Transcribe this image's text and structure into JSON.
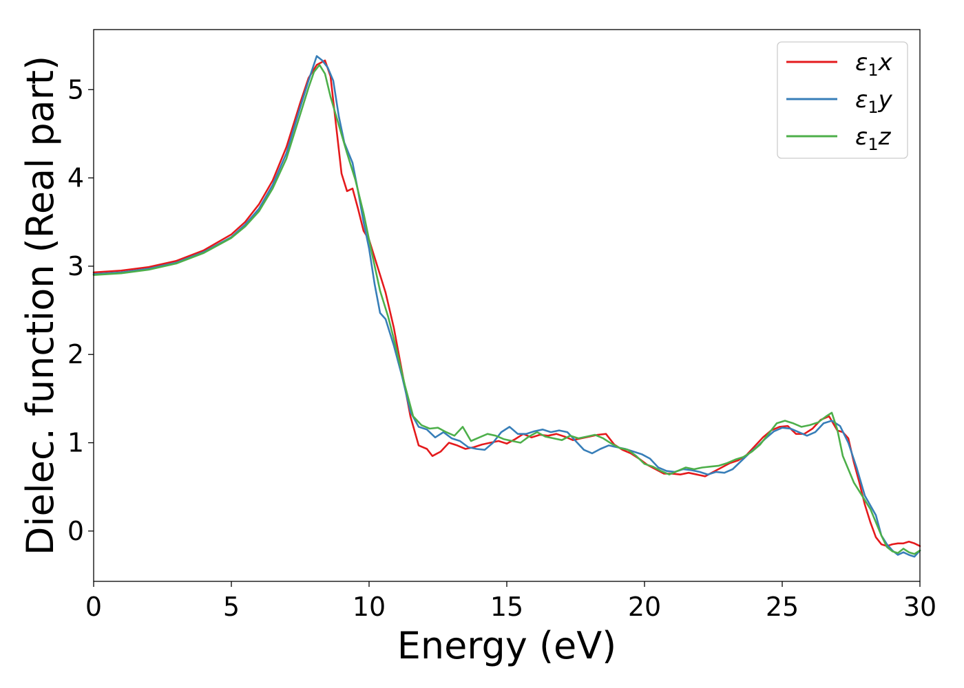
{
  "chart_data": {
    "type": "line",
    "title": "",
    "xlabel": "Energy (eV)",
    "ylabel": "Dielec. function (Real part)",
    "xlim": [
      0,
      30
    ],
    "ylim": [
      -0.57,
      5.68
    ],
    "xticks": [
      0,
      5,
      10,
      15,
      20,
      25,
      30
    ],
    "xtick_labels": [
      "0",
      "5",
      "10",
      "15",
      "20",
      "25",
      "30"
    ],
    "yticks": [
      0,
      1,
      2,
      3,
      4,
      5
    ],
    "ytick_labels": [
      "0",
      "1",
      "2",
      "3",
      "4",
      "5"
    ],
    "grid": false,
    "legend_position": "top-right",
    "series": [
      {
        "name": "ε₁x",
        "legend_main": "ε",
        "legend_sub": "1",
        "legend_var": "x",
        "color": "#e41a1c",
        "x": [
          0,
          1,
          2,
          3,
          4,
          5,
          5.5,
          6,
          6.5,
          7,
          7.5,
          7.8,
          8.1,
          8.4,
          8.6,
          8.8,
          9,
          9.2,
          9.4,
          9.6,
          9.8,
          10,
          10.3,
          10.6,
          10.9,
          11.2,
          11.5,
          11.8,
          12.1,
          12.3,
          12.6,
          12.9,
          13.2,
          13.5,
          13.8,
          14.1,
          14.4,
          14.7,
          15,
          15.3,
          15.6,
          15.9,
          16.2,
          16.5,
          16.8,
          17.1,
          17.4,
          17.7,
          18,
          18.3,
          18.6,
          18.9,
          19.2,
          19.5,
          19.8,
          20.1,
          20.4,
          20.7,
          21,
          21.3,
          21.6,
          21.9,
          22.2,
          22.5,
          22.8,
          23.1,
          23.4,
          23.7,
          24,
          24.3,
          24.6,
          24.9,
          25.2,
          25.5,
          25.8,
          26.1,
          26.4,
          26.7,
          27,
          27.2,
          27.4,
          27.6,
          27.8,
          28,
          28.2,
          28.4,
          28.6,
          28.8,
          29,
          29.2,
          29.4,
          29.6,
          29.8,
          30
        ],
        "y": [
          2.93,
          2.95,
          2.99,
          3.06,
          3.18,
          3.36,
          3.5,
          3.7,
          3.97,
          4.35,
          4.85,
          5.13,
          5.28,
          5.33,
          5.15,
          4.6,
          4.05,
          3.85,
          3.88,
          3.65,
          3.4,
          3.3,
          3.0,
          2.7,
          2.3,
          1.8,
          1.3,
          0.97,
          0.93,
          0.85,
          0.9,
          1.0,
          0.97,
          0.93,
          0.95,
          0.98,
          1.0,
          1.02,
          0.99,
          1.04,
          1.1,
          1.06,
          1.09,
          1.08,
          1.1,
          1.07,
          1.03,
          1.05,
          1.07,
          1.09,
          1.1,
          0.98,
          0.92,
          0.88,
          0.82,
          0.75,
          0.7,
          0.65,
          0.65,
          0.64,
          0.66,
          0.64,
          0.62,
          0.67,
          0.72,
          0.77,
          0.8,
          0.86,
          0.96,
          1.06,
          1.14,
          1.18,
          1.19,
          1.1,
          1.1,
          1.16,
          1.26,
          1.3,
          1.14,
          1.12,
          1.05,
          0.78,
          0.55,
          0.3,
          0.1,
          -0.07,
          -0.15,
          -0.17,
          -0.15,
          -0.14,
          -0.14,
          -0.12,
          -0.14,
          -0.17
        ]
      },
      {
        "name": "ε₁y",
        "legend_main": "ε",
        "legend_sub": "1",
        "legend_var": "y",
        "color": "#377eb8",
        "x": [
          0,
          1,
          2,
          3,
          4,
          5,
          5.5,
          6,
          6.5,
          7,
          7.5,
          7.8,
          8.1,
          8.3,
          8.5,
          8.7,
          8.9,
          9.1,
          9.4,
          9.6,
          9.8,
          10,
          10.2,
          10.4,
          10.6,
          10.9,
          11.2,
          11.5,
          11.8,
          12.1,
          12.4,
          12.7,
          13,
          13.3,
          13.6,
          13.9,
          14.2,
          14.5,
          14.8,
          15.1,
          15.4,
          15.7,
          16,
          16.3,
          16.6,
          16.9,
          17.2,
          17.5,
          17.8,
          18.1,
          18.4,
          18.7,
          19,
          19.3,
          19.6,
          19.9,
          20.2,
          20.5,
          20.8,
          21.1,
          21.4,
          21.7,
          22,
          22.3,
          22.6,
          22.9,
          23.2,
          23.5,
          23.8,
          24.1,
          24.4,
          24.7,
          25,
          25.3,
          25.6,
          25.9,
          26.2,
          26.5,
          26.8,
          27.1,
          27.4,
          27.7,
          28,
          28.2,
          28.4,
          28.6,
          28.8,
          29,
          29.2,
          29.4,
          29.6,
          29.8,
          30
        ],
        "y": [
          2.91,
          2.93,
          2.97,
          3.04,
          3.16,
          3.33,
          3.47,
          3.65,
          3.92,
          4.28,
          4.8,
          5.1,
          5.38,
          5.33,
          5.25,
          5.1,
          4.7,
          4.4,
          4.17,
          3.85,
          3.5,
          3.2,
          2.8,
          2.47,
          2.4,
          2.1,
          1.75,
          1.35,
          1.18,
          1.15,
          1.06,
          1.12,
          1.05,
          1.02,
          0.95,
          0.93,
          0.92,
          1.0,
          1.12,
          1.18,
          1.1,
          1.1,
          1.13,
          1.15,
          1.12,
          1.14,
          1.12,
          1.02,
          0.92,
          0.88,
          0.93,
          0.97,
          0.95,
          0.93,
          0.9,
          0.87,
          0.82,
          0.72,
          0.68,
          0.67,
          0.7,
          0.69,
          0.67,
          0.64,
          0.67,
          0.66,
          0.7,
          0.79,
          0.88,
          0.96,
          1.05,
          1.13,
          1.17,
          1.16,
          1.12,
          1.08,
          1.12,
          1.22,
          1.25,
          1.19,
          1.0,
          0.72,
          0.4,
          0.29,
          0.18,
          -0.05,
          -0.15,
          -0.22,
          -0.27,
          -0.24,
          -0.27,
          -0.29,
          -0.22
        ]
      },
      {
        "name": "ε₁z",
        "legend_main": "ε",
        "legend_sub": "1",
        "legend_var": "z",
        "color": "#4daf4a",
        "x": [
          0,
          1,
          2,
          3,
          4,
          5,
          5.5,
          6,
          6.5,
          7,
          7.5,
          7.8,
          8.0,
          8.2,
          8.4,
          8.6,
          8.9,
          9.2,
          9.5,
          9.8,
          10.1,
          10.4,
          10.7,
          11.0,
          11.3,
          11.6,
          11.9,
          12.2,
          12.5,
          12.8,
          13.1,
          13.4,
          13.7,
          14.0,
          14.3,
          14.6,
          14.9,
          15.2,
          15.5,
          15.8,
          16.1,
          16.4,
          16.7,
          17.0,
          17.3,
          17.6,
          17.9,
          18.2,
          18.5,
          18.8,
          19.1,
          19.4,
          19.7,
          20.0,
          20.3,
          20.6,
          20.9,
          21.2,
          21.5,
          21.8,
          22.1,
          22.4,
          22.7,
          23.0,
          23.3,
          23.6,
          23.9,
          24.2,
          24.5,
          24.8,
          25.1,
          25.4,
          25.7,
          26.0,
          26.3,
          26.6,
          26.8,
          27.0,
          27.2,
          27.4,
          27.6,
          27.8,
          28.0,
          28.2,
          28.4,
          28.6,
          28.8,
          29.0,
          29.2,
          29.4,
          29.6,
          29.8,
          30
        ],
        "y": [
          2.9,
          2.92,
          2.96,
          3.03,
          3.15,
          3.32,
          3.45,
          3.62,
          3.88,
          4.22,
          4.72,
          5.02,
          5.2,
          5.28,
          5.18,
          4.92,
          4.6,
          4.28,
          3.98,
          3.6,
          3.15,
          2.72,
          2.42,
          2.05,
          1.65,
          1.3,
          1.2,
          1.16,
          1.17,
          1.12,
          1.08,
          1.18,
          1.02,
          1.06,
          1.1,
          1.08,
          1.04,
          1.02,
          1.0,
          1.07,
          1.12,
          1.07,
          1.05,
          1.03,
          1.08,
          1.05,
          1.07,
          1.09,
          1.05,
          0.99,
          0.94,
          0.92,
          0.85,
          0.76,
          0.73,
          0.68,
          0.64,
          0.68,
          0.72,
          0.7,
          0.72,
          0.73,
          0.74,
          0.77,
          0.81,
          0.84,
          0.9,
          0.98,
          1.1,
          1.22,
          1.25,
          1.22,
          1.18,
          1.2,
          1.23,
          1.3,
          1.34,
          1.15,
          0.85,
          0.7,
          0.55,
          0.45,
          0.35,
          0.25,
          0.1,
          -0.05,
          -0.18,
          -0.23,
          -0.25,
          -0.2,
          -0.24,
          -0.26,
          -0.22
        ]
      }
    ]
  }
}
